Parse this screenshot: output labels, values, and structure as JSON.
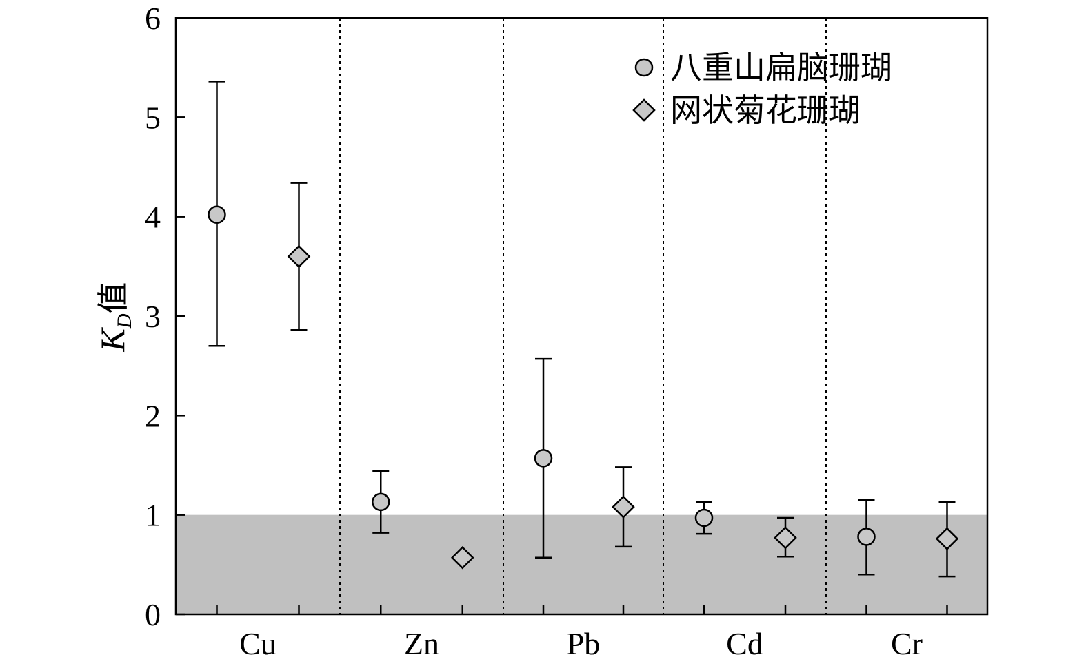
{
  "chart_data": {
    "type": "scatter",
    "categories": [
      "Cu",
      "Zn",
      "Pb",
      "Cd",
      "Cr"
    ],
    "ylabel": {
      "main": "K",
      "sub": "D",
      "suffix": "值"
    },
    "ylim": [
      0,
      6
    ],
    "yticks": [
      "0",
      "1",
      "2",
      "3",
      "4",
      "5",
      "6"
    ],
    "shaded_band": {
      "from": 0,
      "to": 1,
      "color": "#c0c0c0"
    },
    "separators": "dotted lines between categories",
    "grid": false,
    "legend_position": "top-right",
    "series": [
      {
        "name": "八重山扁脑珊瑚",
        "marker": "circle",
        "points": [
          {
            "category": "Cu",
            "y": 4.02,
            "low": 2.7,
            "high": 5.36
          },
          {
            "category": "Zn",
            "y": 1.13,
            "low": 0.82,
            "high": 1.44
          },
          {
            "category": "Pb",
            "y": 1.57,
            "low": 0.57,
            "high": 2.57
          },
          {
            "category": "Cd",
            "y": 0.97,
            "low": 0.81,
            "high": 1.13
          },
          {
            "category": "Cr",
            "y": 0.78,
            "low": 0.4,
            "high": 1.15
          }
        ]
      },
      {
        "name": "网状菊花珊瑚",
        "marker": "diamond",
        "points": [
          {
            "category": "Cu",
            "y": 3.6,
            "low": 2.86,
            "high": 4.34
          },
          {
            "category": "Zn",
            "y": 0.57,
            "low": null,
            "high": null
          },
          {
            "category": "Pb",
            "y": 1.08,
            "low": 0.68,
            "high": 1.48
          },
          {
            "category": "Cd",
            "y": 0.77,
            "low": 0.58,
            "high": 0.97
          },
          {
            "category": "Cr",
            "y": 0.76,
            "low": 0.38,
            "high": 1.13
          }
        ]
      }
    ],
    "colors": {
      "marker_fill": "#c8c8c8",
      "marker_stroke": "#000000",
      "band": "#c0c0c0"
    }
  }
}
